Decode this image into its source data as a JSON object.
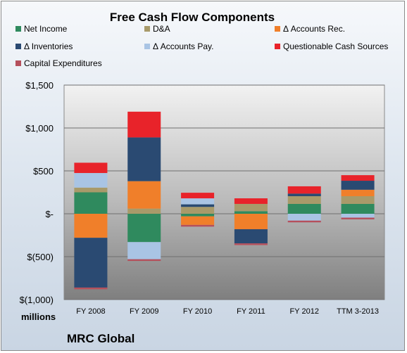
{
  "colors": {
    "net_income": "#2f8a5e",
    "da": "#a89a6a",
    "accounts_rec": "#f07f2a",
    "inventories": "#2a4a72",
    "accounts_pay": "#a9c4e4",
    "questionable": "#e8232a",
    "capex": "#b5505c"
  },
  "footer": "MRC Global",
  "chart_data": {
    "type": "bar",
    "stacked": true,
    "title": "Free Cash Flow Components",
    "xlabel": "",
    "ylabel": "",
    "unit_label": "millions",
    "ylim": [
      -1000,
      1500
    ],
    "yticks": [
      -1000,
      -500,
      0,
      500,
      1000,
      1500
    ],
    "ytick_labels": [
      "$(1,000)",
      "$(500)",
      "$-",
      "$500",
      "$1,000",
      "$1,500"
    ],
    "grid": true,
    "legend_position": "top",
    "categories": [
      "FY 2008",
      "FY 2009",
      "FY 2010",
      "FY 2011",
      "FY 2012",
      "TTM 3-2013"
    ],
    "series": [
      {
        "name": "Net Income",
        "color_key": "net_income",
        "values": [
          250,
          -330,
          -30,
          30,
          115,
          115
        ]
      },
      {
        "name": "D&A",
        "color_key": "da",
        "values": [
          55,
          60,
          80,
          85,
          90,
          90
        ]
      },
      {
        "name": "Δ Accounts Rec.",
        "color_key": "accounts_rec",
        "values": [
          -280,
          320,
          -100,
          -180,
          0,
          75
        ]
      },
      {
        "name": "Δ Inventories",
        "color_key": "inventories",
        "values": [
          -580,
          510,
          30,
          -165,
          30,
          105
        ]
      },
      {
        "name": "Δ Accounts Pay.",
        "color_key": "accounts_pay",
        "values": [
          170,
          -200,
          70,
          0,
          -80,
          -45
        ]
      },
      {
        "name": "Questionable Cash Sources",
        "color_key": "questionable",
        "values": [
          120,
          300,
          65,
          65,
          85,
          65
        ]
      },
      {
        "name": "Capital Expenditures",
        "color_key": "capex",
        "values": [
          -20,
          -20,
          -20,
          -20,
          -20,
          -20
        ]
      }
    ]
  }
}
